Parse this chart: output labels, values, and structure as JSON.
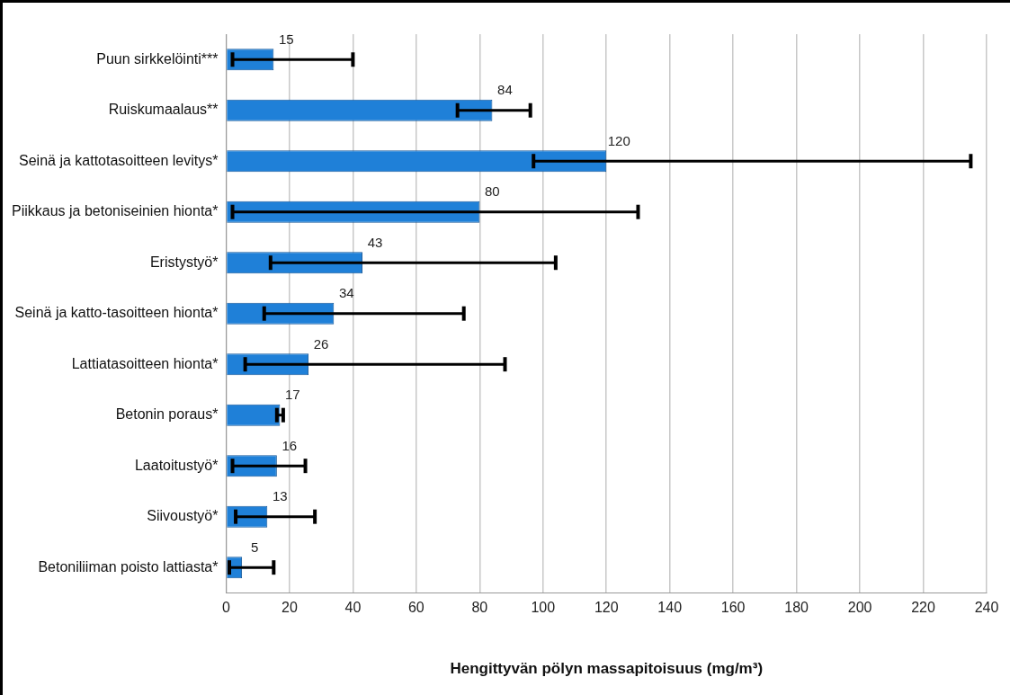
{
  "chart_data": {
    "type": "bar",
    "orientation": "horizontal",
    "xlabel": "Hengittyvän pölyn massapitoisuus (mg/m³)",
    "categories": [
      "Puun sirkkelöinti***",
      "Ruiskumaalaus**",
      "Seinä ja kattotasoitteen levitys*",
      "Piikkaus ja betoniseinien hionta*",
      "Eristystyö*",
      "Seinä ja katto-tasoitteen hionta*",
      "Lattiatasoitteen hionta*",
      "Betonin poraus*",
      "Laatoitustyö*",
      "Siivoustyö*",
      "Betoniliiman poisto lattiasta*"
    ],
    "values": [
      15,
      84,
      120,
      80,
      43,
      34,
      26,
      17,
      16,
      13,
      5
    ],
    "errors": [
      [
        2,
        40
      ],
      [
        73,
        96
      ],
      [
        97,
        235
      ],
      [
        2,
        130
      ],
      [
        14,
        104
      ],
      [
        12,
        75
      ],
      [
        6,
        88
      ],
      [
        16,
        18
      ],
      [
        2,
        25
      ],
      [
        3,
        28
      ],
      [
        1,
        15
      ]
    ],
    "color": "#1f80d8",
    "xlim": [
      0,
      240
    ],
    "xticks": [
      0,
      20,
      40,
      60,
      80,
      100,
      120,
      140,
      160,
      180,
      200,
      220,
      240
    ],
    "grid": "x",
    "legend": false,
    "data_labels": true
  }
}
